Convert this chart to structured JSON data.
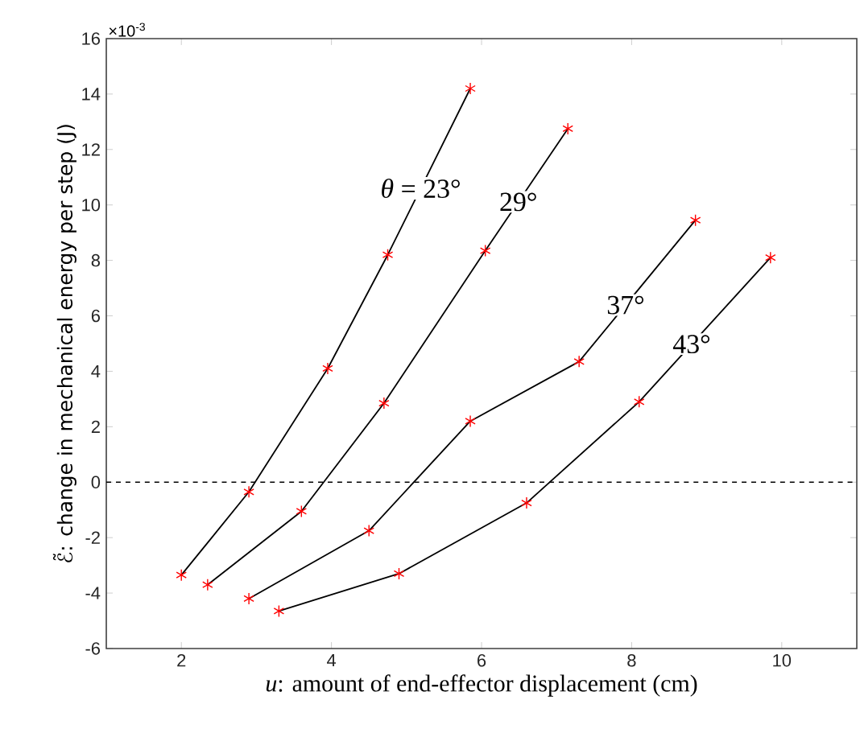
{
  "chart_data": {
    "type": "line",
    "xlabel": "*u*: amount of end-effector displacement (cm)",
    "ylabel": "ℰ̃: change in mechanical energy per step (J)",
    "xlim": [
      1,
      11
    ],
    "xticks": [
      2,
      4,
      6,
      8,
      10
    ],
    "ylim": [
      -6,
      16
    ],
    "yticks": [
      -6,
      -4,
      -2,
      0,
      2,
      4,
      6,
      8,
      10,
      12,
      14,
      16
    ],
    "grid": false,
    "marker": "cross",
    "line_style": "solid",
    "series": [
      {
        "name": "*θ* = 23°",
        "color": "#000000",
        "x": [
          2.0,
          2.9,
          3.95,
          4.75,
          5.85
        ],
        "values": [
          -3.35,
          -0.35,
          4.1,
          8.2,
          14.2
        ]
      },
      {
        "name": "29°",
        "color": "#000000",
        "x": [
          2.35,
          3.6,
          4.7,
          6.05,
          7.15
        ],
        "values": [
          -3.7,
          -1.05,
          2.85,
          8.35,
          12.75
        ]
      },
      {
        "name": "37°",
        "color": "#000000",
        "x": [
          2.9,
          4.5,
          5.85,
          7.3,
          8.85
        ],
        "values": [
          -4.2,
          -1.75,
          2.2,
          4.35,
          9.45
        ]
      },
      {
        "name": "43°",
        "color": "#000000",
        "x": [
          3.3,
          4.9,
          6.6,
          8.1,
          9.85
        ],
        "values": [
          -4.65,
          -3.3,
          -0.75,
          2.9,
          8.1
        ]
      }
    ],
    "ref_lines": [
      {
        "axis": "y",
        "value": 0,
        "line_style": "dashed",
        "color": "#000000"
      }
    ],
    "annotations": [
      "×10$^{-3}$"
    ]
  }
}
